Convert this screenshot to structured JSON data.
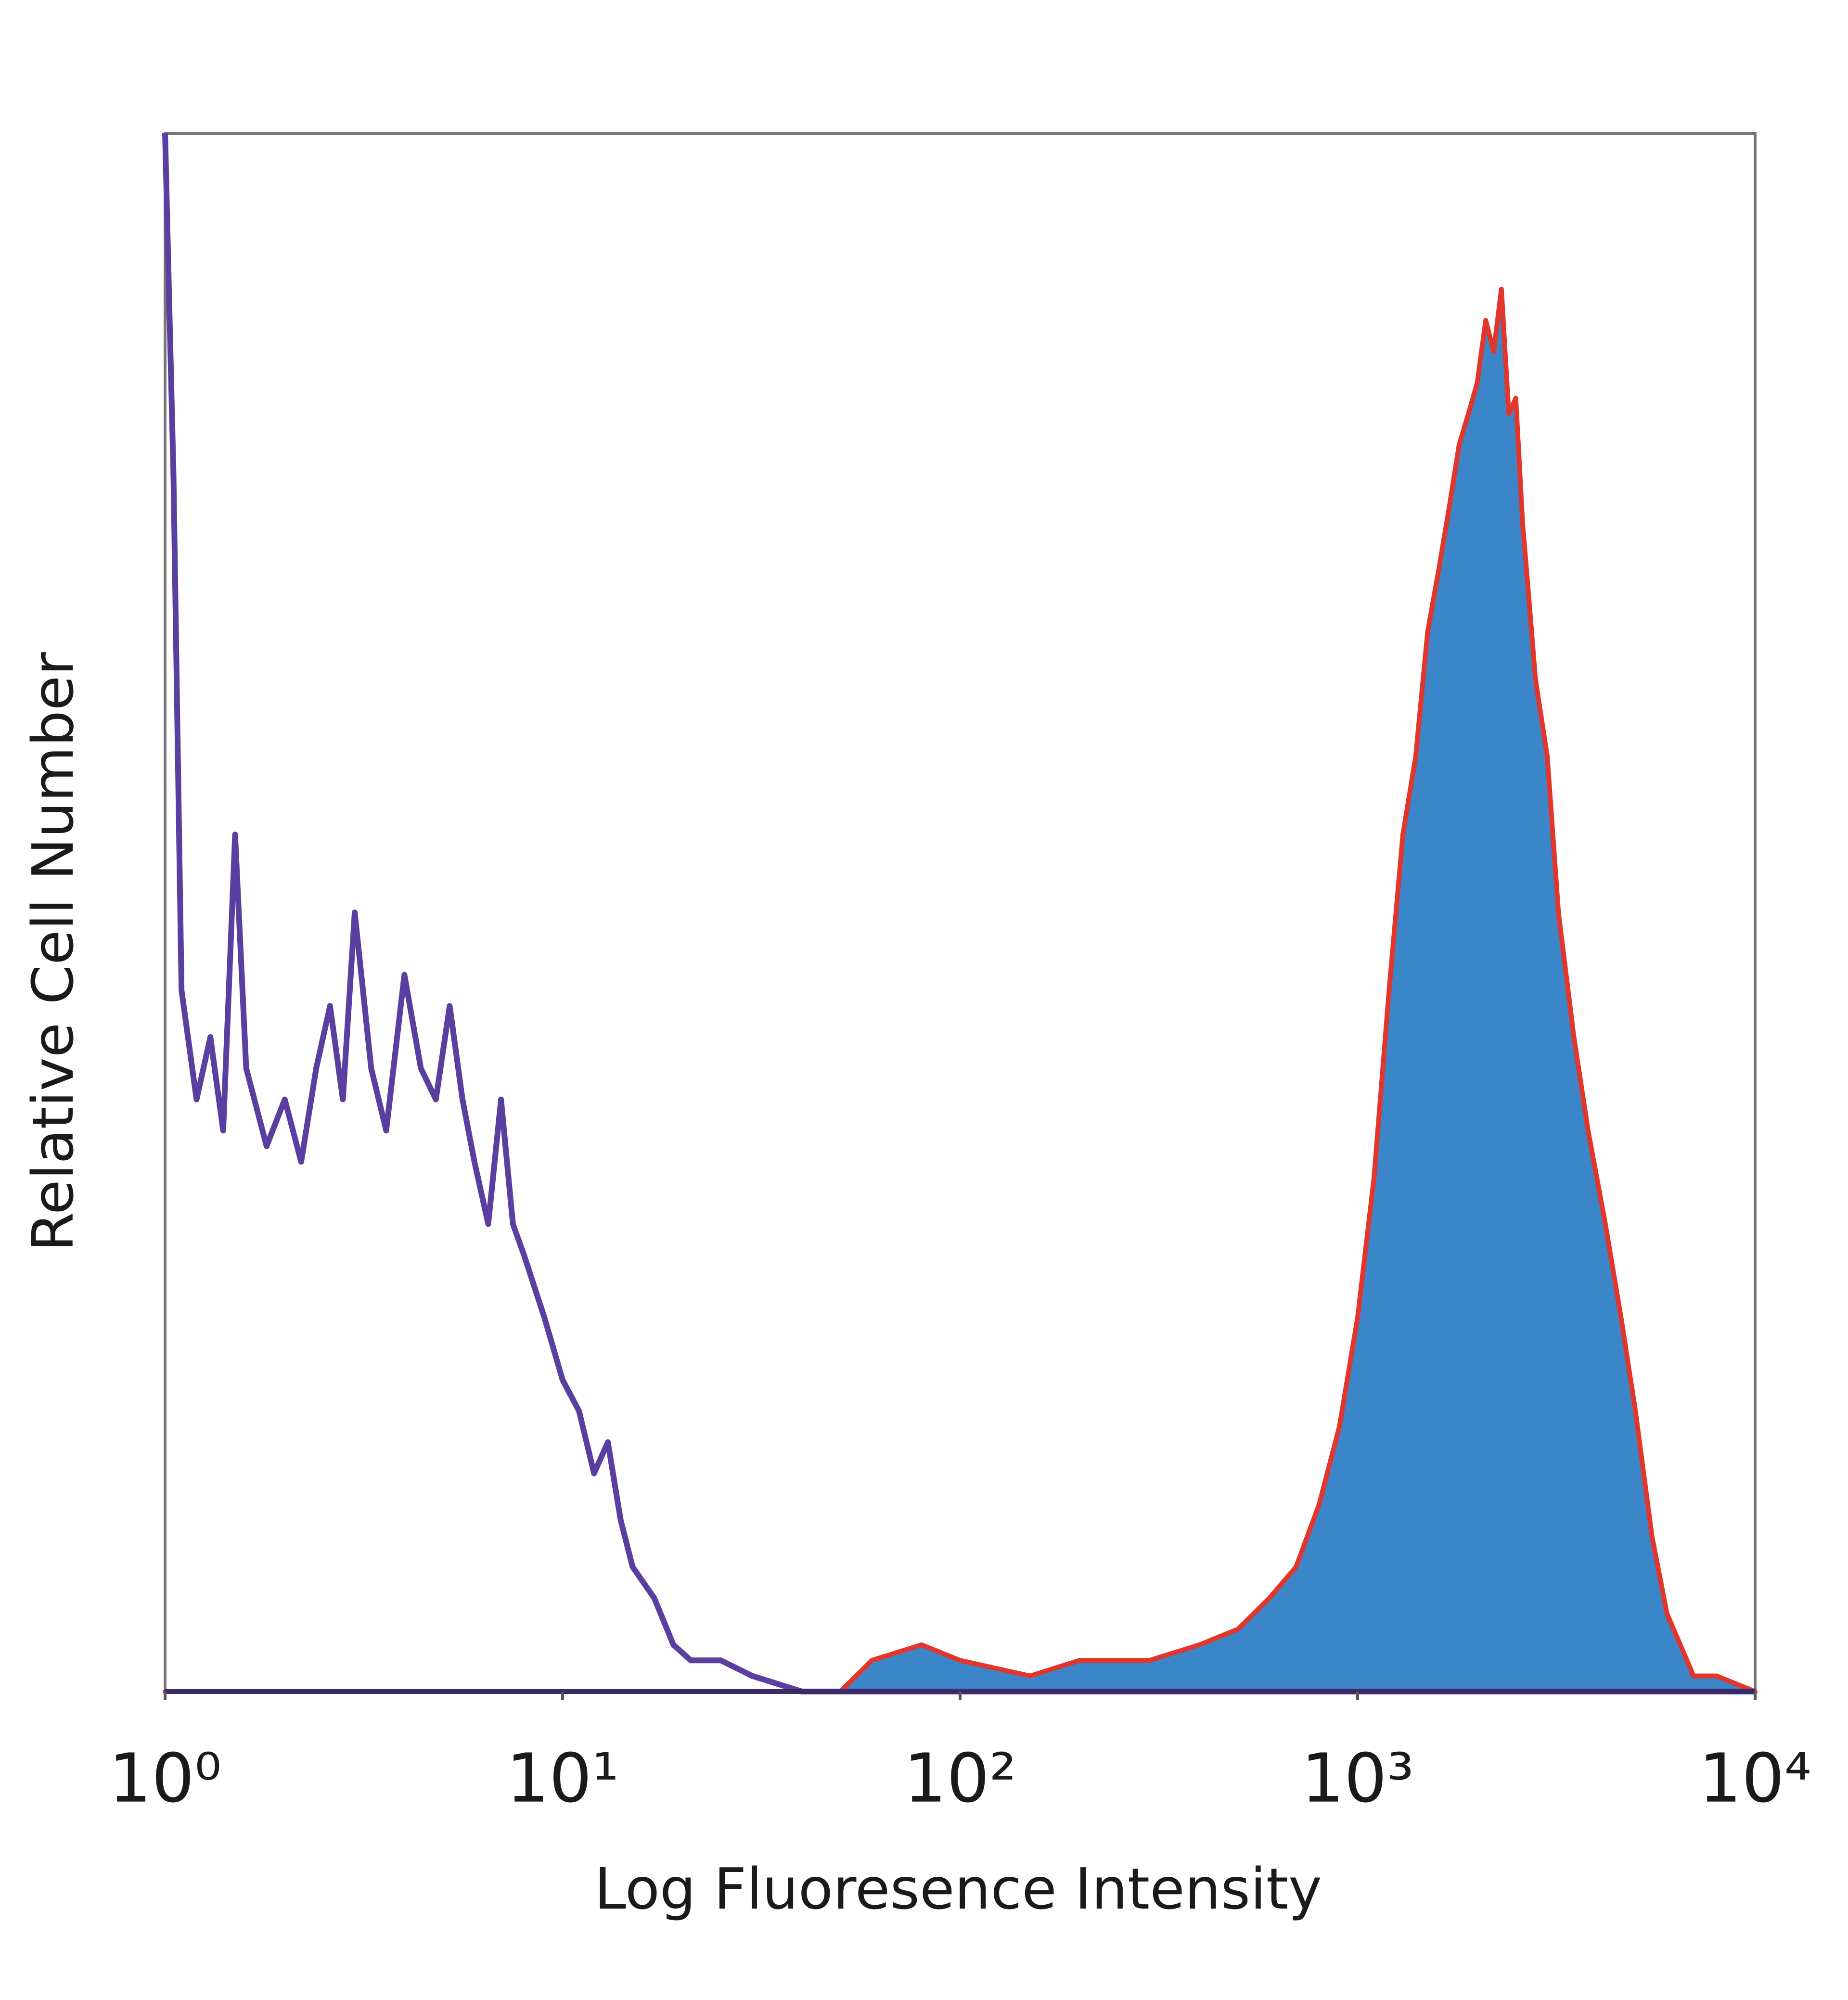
{
  "chart_data": {
    "type": "histogram-overlay",
    "xlabel": "Log Fluoresence Intensity",
    "ylabel": "Relative Cell Number",
    "xscale": "log",
    "xlim": [
      1,
      10000
    ],
    "ylim": [
      0,
      100
    ],
    "xticks": [
      {
        "value": 1,
        "label": "10⁰"
      },
      {
        "value": 10,
        "label": "10¹"
      },
      {
        "value": 100,
        "label": "10²"
      },
      {
        "value": 1000,
        "label": "10³"
      },
      {
        "value": 10000,
        "label": "10⁴"
      }
    ],
    "series": [
      {
        "color": "#3b86c8",
        "edge_color": "#e2362c",
        "filled": true,
        "x": [
          1,
          50,
          60,
          80,
          100,
          150,
          200,
          300,
          400,
          500,
          600,
          700,
          800,
          900,
          1000,
          1100,
          1200,
          1300,
          1400,
          1500,
          1600,
          1700,
          1800,
          1900,
          2000,
          2100,
          2200,
          2300,
          2400,
          2500,
          2600,
          2700,
          2800,
          3000,
          3200,
          3500,
          3800,
          4200,
          4600,
          5000,
          5500,
          6000,
          7000,
          8000,
          10000
        ],
        "values": [
          0,
          0,
          2,
          3,
          2,
          1,
          2,
          2,
          3,
          4,
          6,
          8,
          12,
          17,
          24,
          33,
          45,
          55,
          60,
          68,
          72,
          76,
          80,
          82,
          84,
          88,
          86,
          90,
          82,
          83,
          75,
          70,
          65,
          60,
          50,
          42,
          36,
          30,
          24,
          18,
          10,
          5,
          1,
          1,
          0
        ]
      },
      {
        "color": "#5b3fa0",
        "filled": false,
        "x": [
          1,
          1.05,
          1.1,
          1.2,
          1.3,
          1.4,
          1.5,
          1.6,
          1.8,
          2,
          2.2,
          2.4,
          2.6,
          2.8,
          3,
          3.3,
          3.6,
          4,
          4.4,
          4.8,
          5.2,
          5.6,
          6,
          6.5,
          7,
          7.5,
          8,
          9,
          10,
          11,
          12,
          13,
          14,
          15,
          17,
          19,
          21,
          25,
          30,
          40,
          60,
          100,
          300,
          1000,
          2000,
          3000,
          5000,
          10000
        ],
        "values": [
          100,
          78,
          45,
          38,
          42,
          36,
          55,
          40,
          35,
          38,
          34,
          40,
          44,
          38,
          50,
          40,
          36,
          46,
          40,
          38,
          44,
          38,
          34,
          30,
          38,
          30,
          28,
          24,
          20,
          18,
          14,
          16,
          11,
          8,
          6,
          3,
          2,
          2,
          1,
          0,
          0,
          0,
          0,
          0,
          0,
          0,
          0,
          0
        ]
      }
    ]
  }
}
